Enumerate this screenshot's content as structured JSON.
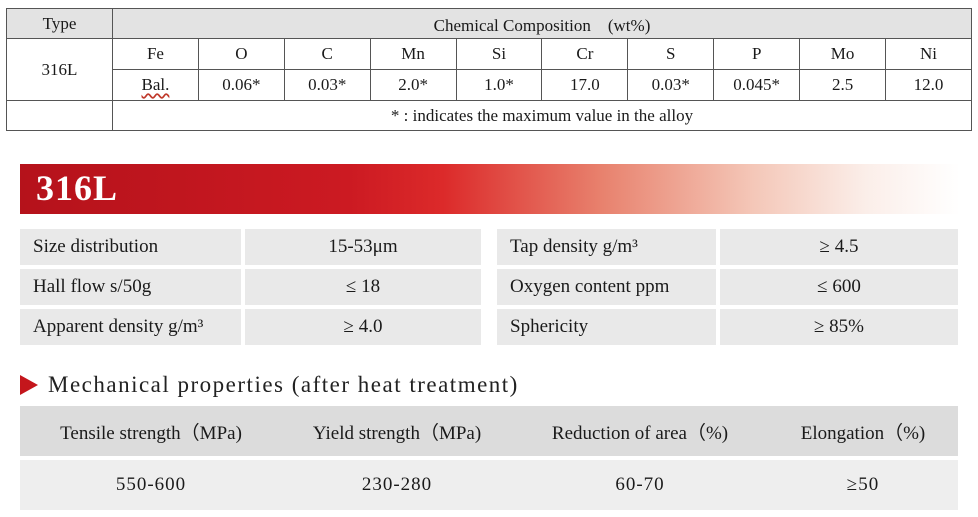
{
  "composition": {
    "type_header": "Type",
    "title": "Chemical Composition　(wt%)",
    "type_value": "316L",
    "elements": [
      "Fe",
      "O",
      "C",
      "Mn",
      "Si",
      "Cr",
      "S",
      "P",
      "Mo",
      "Ni"
    ],
    "values": [
      "Bal.",
      "0.06*",
      "0.03*",
      "2.0*",
      "1.0*",
      "17.0",
      "0.03*",
      "0.045*",
      "2.5",
      "12.0"
    ],
    "note": "* : indicates the maximum value in the alloy"
  },
  "banner": {
    "title": "316L",
    "colors": {
      "start": "#b5121b",
      "end": "#ffffff"
    }
  },
  "properties": {
    "left": [
      {
        "label": "Size distribution",
        "value": "15-53μm"
      },
      {
        "label": "Hall flow s/50g",
        "value": "≤ 18"
      },
      {
        "label": "Apparent density g/m³",
        "value": "≥ 4.0"
      }
    ],
    "right": [
      {
        "label": "Tap density g/m³",
        "value": "≥ 4.5"
      },
      {
        "label": "Oxygen content ppm",
        "value": "≤ 600"
      },
      {
        "label": "Sphericity",
        "value": "≥ 85%"
      }
    ]
  },
  "mechanical": {
    "section_title": "Mechanical properties (after heat treatment)",
    "marker_icon": "triangle-right-icon",
    "accent": "#c4161c",
    "headers": [
      "Tensile strength（MPa)",
      "Yield strength（MPa)",
      "Reduction of area（%)",
      "Elongation（%)"
    ],
    "values": [
      "550-600",
      "230-280",
      "60-70",
      "≥50"
    ]
  }
}
